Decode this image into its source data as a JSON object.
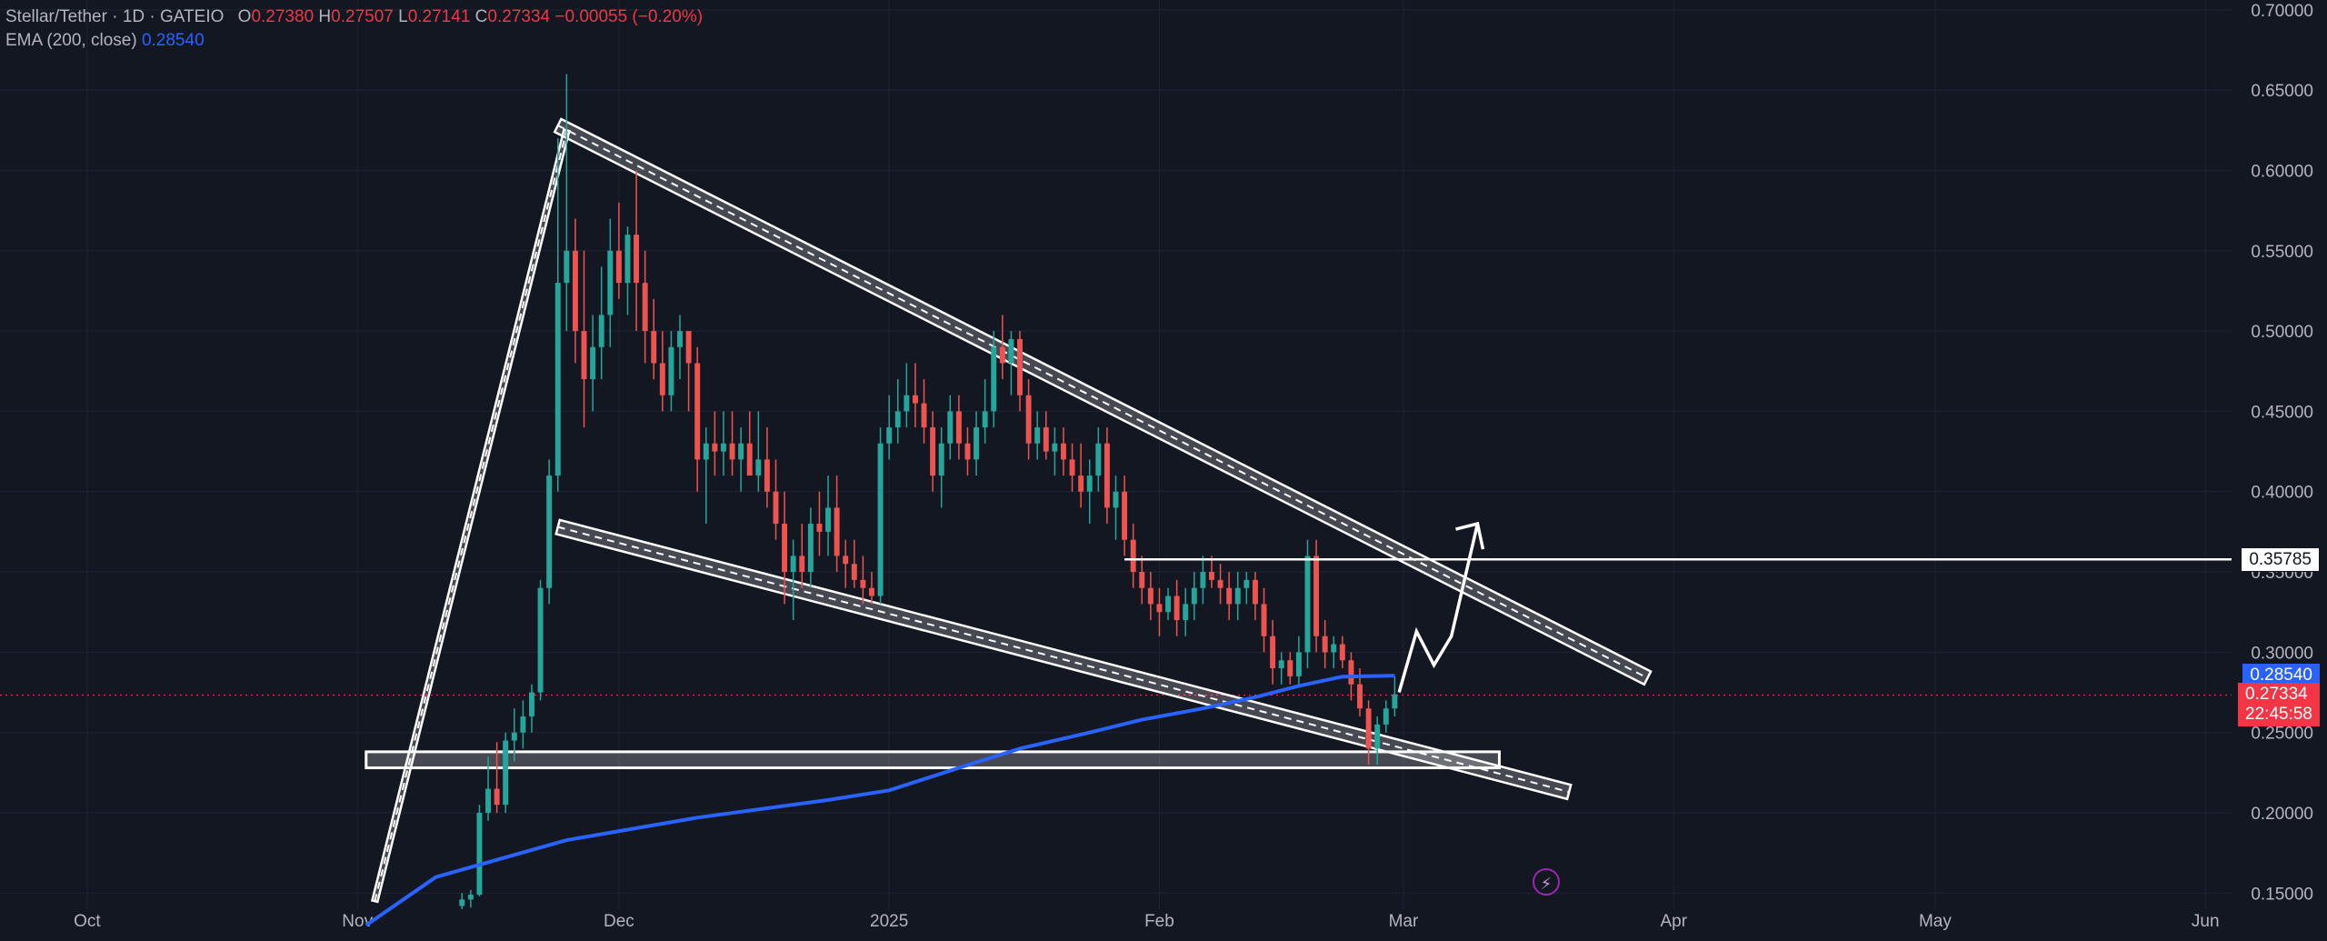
{
  "legend": {
    "symbol": "Stellar/Tether · 1D · GATEIO",
    "o_label": "O",
    "o": "0.27380",
    "h_label": "H",
    "h": "0.27507",
    "l_label": "L",
    "l": "0.27141",
    "c_label": "C",
    "c": "0.27334",
    "change": "−0.00055 (−0.20%)",
    "ema_label": "EMA (200, close)",
    "ema_value": "0.28540"
  },
  "price_tags": {
    "level": "0.35785",
    "ema": "0.28540",
    "last": "0.27334",
    "countdown": "22:45:58"
  },
  "chart_data": {
    "type": "candlestick",
    "y_axis": {
      "position": "right",
      "range": [
        0.14,
        0.705
      ],
      "ticks": [
        "0.70000",
        "0.65000",
        "0.60000",
        "0.55000",
        "0.50000",
        "0.45000",
        "0.40000",
        "0.35000",
        "0.30000",
        "0.25000",
        "0.20000",
        "0.15000"
      ]
    },
    "x_axis": {
      "range_days": [
        -10,
        246
      ],
      "ticks": [
        {
          "label": "Oct",
          "day": 0
        },
        {
          "label": "Nov",
          "day": 31
        },
        {
          "label": "Dec",
          "day": 61
        },
        {
          "label": "2025",
          "day": 92
        },
        {
          "label": "Feb",
          "day": 123
        },
        {
          "label": "Mar",
          "day": 151
        },
        {
          "label": "Apr",
          "day": 182
        },
        {
          "label": "May",
          "day": 212
        },
        {
          "label": "Jun",
          "day": 243
        }
      ]
    },
    "grid": true,
    "colors": {
      "up": "#26a69a",
      "down": "#ef5350",
      "ema": "#2962ff",
      "lines": "#ffffff",
      "bg": "#131722"
    },
    "price_series": [
      [
        43,
        0.142,
        0.15,
        0.14,
        0.146
      ],
      [
        44,
        0.146,
        0.152,
        0.141,
        0.149
      ],
      [
        45,
        0.149,
        0.205,
        0.148,
        0.2
      ],
      [
        46,
        0.2,
        0.235,
        0.195,
        0.215
      ],
      [
        47,
        0.215,
        0.244,
        0.2,
        0.205
      ],
      [
        48,
        0.205,
        0.25,
        0.2,
        0.245
      ],
      [
        49,
        0.245,
        0.265,
        0.232,
        0.25
      ],
      [
        50,
        0.25,
        0.27,
        0.24,
        0.26
      ],
      [
        51,
        0.26,
        0.28,
        0.25,
        0.275
      ],
      [
        52,
        0.275,
        0.345,
        0.27,
        0.34
      ],
      [
        53,
        0.34,
        0.42,
        0.33,
        0.41
      ],
      [
        54,
        0.41,
        0.62,
        0.4,
        0.53
      ],
      [
        55,
        0.53,
        0.66,
        0.5,
        0.55
      ],
      [
        56,
        0.55,
        0.57,
        0.48,
        0.5
      ],
      [
        57,
        0.5,
        0.55,
        0.44,
        0.47
      ],
      [
        58,
        0.47,
        0.51,
        0.45,
        0.49
      ],
      [
        59,
        0.49,
        0.54,
        0.47,
        0.51
      ],
      [
        60,
        0.51,
        0.57,
        0.49,
        0.55
      ],
      [
        61,
        0.55,
        0.58,
        0.52,
        0.53
      ],
      [
        62,
        0.53,
        0.565,
        0.51,
        0.56
      ],
      [
        63,
        0.56,
        0.6,
        0.5,
        0.53
      ],
      [
        64,
        0.53,
        0.55,
        0.48,
        0.5
      ],
      [
        65,
        0.5,
        0.52,
        0.47,
        0.48
      ],
      [
        66,
        0.48,
        0.5,
        0.45,
        0.46
      ],
      [
        67,
        0.46,
        0.5,
        0.45,
        0.49
      ],
      [
        68,
        0.49,
        0.51,
        0.47,
        0.5
      ],
      [
        69,
        0.5,
        0.5,
        0.45,
        0.48
      ],
      [
        70,
        0.48,
        0.49,
        0.4,
        0.42
      ],
      [
        71,
        0.42,
        0.44,
        0.38,
        0.43
      ],
      [
        72,
        0.43,
        0.45,
        0.41,
        0.425
      ],
      [
        73,
        0.425,
        0.45,
        0.41,
        0.43
      ],
      [
        74,
        0.43,
        0.45,
        0.41,
        0.42
      ],
      [
        75,
        0.42,
        0.44,
        0.4,
        0.43
      ],
      [
        76,
        0.43,
        0.45,
        0.41,
        0.41
      ],
      [
        77,
        0.41,
        0.45,
        0.4,
        0.42
      ],
      [
        78,
        0.42,
        0.44,
        0.39,
        0.4
      ],
      [
        79,
        0.4,
        0.42,
        0.37,
        0.38
      ],
      [
        80,
        0.38,
        0.4,
        0.33,
        0.35
      ],
      [
        81,
        0.35,
        0.37,
        0.32,
        0.36
      ],
      [
        82,
        0.36,
        0.38,
        0.34,
        0.35
      ],
      [
        83,
        0.35,
        0.39,
        0.34,
        0.38
      ],
      [
        84,
        0.38,
        0.4,
        0.36,
        0.375
      ],
      [
        85,
        0.375,
        0.41,
        0.36,
        0.39
      ],
      [
        86,
        0.39,
        0.41,
        0.35,
        0.36
      ],
      [
        87,
        0.36,
        0.37,
        0.34,
        0.355
      ],
      [
        88,
        0.355,
        0.37,
        0.34,
        0.345
      ],
      [
        89,
        0.345,
        0.36,
        0.33,
        0.34
      ],
      [
        90,
        0.34,
        0.35,
        0.33,
        0.335
      ],
      [
        91,
        0.335,
        0.44,
        0.33,
        0.43
      ],
      [
        92,
        0.43,
        0.46,
        0.42,
        0.44
      ],
      [
        93,
        0.44,
        0.47,
        0.43,
        0.45
      ],
      [
        94,
        0.45,
        0.48,
        0.44,
        0.46
      ],
      [
        95,
        0.46,
        0.48,
        0.44,
        0.455
      ],
      [
        96,
        0.455,
        0.47,
        0.43,
        0.44
      ],
      [
        97,
        0.44,
        0.45,
        0.4,
        0.41
      ],
      [
        98,
        0.41,
        0.44,
        0.39,
        0.43
      ],
      [
        99,
        0.43,
        0.46,
        0.42,
        0.45
      ],
      [
        100,
        0.45,
        0.46,
        0.42,
        0.43
      ],
      [
        101,
        0.43,
        0.44,
        0.41,
        0.42
      ],
      [
        102,
        0.42,
        0.45,
        0.41,
        0.44
      ],
      [
        103,
        0.44,
        0.47,
        0.43,
        0.45
      ],
      [
        104,
        0.45,
        0.5,
        0.44,
        0.49
      ],
      [
        105,
        0.49,
        0.51,
        0.47,
        0.48
      ],
      [
        106,
        0.48,
        0.5,
        0.46,
        0.495
      ],
      [
        107,
        0.495,
        0.5,
        0.45,
        0.46
      ],
      [
        108,
        0.46,
        0.47,
        0.42,
        0.43
      ],
      [
        109,
        0.43,
        0.45,
        0.42,
        0.44
      ],
      [
        110,
        0.44,
        0.45,
        0.42,
        0.425
      ],
      [
        111,
        0.425,
        0.44,
        0.41,
        0.43
      ],
      [
        112,
        0.43,
        0.44,
        0.41,
        0.42
      ],
      [
        113,
        0.42,
        0.43,
        0.4,
        0.41
      ],
      [
        114,
        0.41,
        0.43,
        0.39,
        0.4
      ],
      [
        115,
        0.4,
        0.42,
        0.38,
        0.41
      ],
      [
        116,
        0.41,
        0.44,
        0.4,
        0.43
      ],
      [
        117,
        0.43,
        0.44,
        0.38,
        0.39
      ],
      [
        118,
        0.39,
        0.41,
        0.37,
        0.4
      ],
      [
        119,
        0.4,
        0.41,
        0.36,
        0.37
      ],
      [
        120,
        0.37,
        0.38,
        0.34,
        0.35
      ],
      [
        121,
        0.35,
        0.36,
        0.33,
        0.34
      ],
      [
        122,
        0.34,
        0.35,
        0.32,
        0.33
      ],
      [
        123,
        0.33,
        0.34,
        0.31,
        0.325
      ],
      [
        124,
        0.325,
        0.34,
        0.32,
        0.335
      ],
      [
        125,
        0.335,
        0.345,
        0.31,
        0.32
      ],
      [
        126,
        0.32,
        0.34,
        0.31,
        0.33
      ],
      [
        127,
        0.33,
        0.35,
        0.32,
        0.34
      ],
      [
        128,
        0.34,
        0.36,
        0.33,
        0.35
      ],
      [
        129,
        0.35,
        0.36,
        0.34,
        0.345
      ],
      [
        130,
        0.345,
        0.355,
        0.33,
        0.34
      ],
      [
        131,
        0.34,
        0.35,
        0.32,
        0.33
      ],
      [
        132,
        0.33,
        0.35,
        0.32,
        0.34
      ],
      [
        133,
        0.34,
        0.35,
        0.33,
        0.345
      ],
      [
        134,
        0.345,
        0.35,
        0.32,
        0.33
      ],
      [
        135,
        0.33,
        0.34,
        0.3,
        0.31
      ],
      [
        136,
        0.31,
        0.32,
        0.28,
        0.29
      ],
      [
        137,
        0.29,
        0.3,
        0.28,
        0.295
      ],
      [
        138,
        0.295,
        0.3,
        0.28,
        0.285
      ],
      [
        139,
        0.285,
        0.31,
        0.28,
        0.3
      ],
      [
        140,
        0.3,
        0.37,
        0.29,
        0.36
      ],
      [
        141,
        0.36,
        0.37,
        0.3,
        0.31
      ],
      [
        142,
        0.31,
        0.32,
        0.29,
        0.3
      ],
      [
        143,
        0.3,
        0.31,
        0.29,
        0.305
      ],
      [
        144,
        0.305,
        0.31,
        0.29,
        0.295
      ],
      [
        145,
        0.295,
        0.3,
        0.27,
        0.28
      ],
      [
        146,
        0.28,
        0.29,
        0.26,
        0.265
      ],
      [
        147,
        0.265,
        0.27,
        0.23,
        0.24
      ],
      [
        148,
        0.24,
        0.26,
        0.23,
        0.255
      ],
      [
        149,
        0.255,
        0.27,
        0.25,
        0.265
      ],
      [
        150,
        0.265,
        0.285,
        0.26,
        0.2738
      ]
    ],
    "ema_series": [
      [
        32,
        0.13
      ],
      [
        40,
        0.16
      ],
      [
        55,
        0.183
      ],
      [
        70,
        0.197
      ],
      [
        85,
        0.208
      ],
      [
        92,
        0.214
      ],
      [
        100,
        0.228
      ],
      [
        107,
        0.24
      ],
      [
        115,
        0.25
      ],
      [
        121,
        0.258
      ],
      [
        128,
        0.265
      ],
      [
        134,
        0.272
      ],
      [
        139,
        0.279
      ],
      [
        144,
        0.2848
      ],
      [
        150,
        0.2854
      ]
    ],
    "horizontal_level": 0.35785,
    "support_zone": [
      0.228,
      0.238
    ]
  }
}
